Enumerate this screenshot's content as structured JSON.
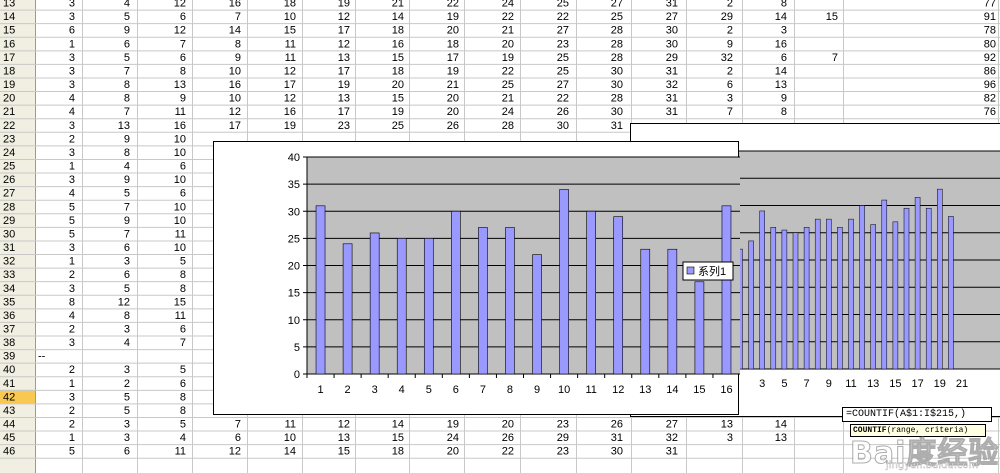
{
  "spreadsheet": {
    "rows": [
      {
        "n": "13",
        "c": [
          "3",
          "4",
          "12",
          "16",
          "18",
          "19",
          "21",
          "22",
          "24",
          "25",
          "27",
          "31",
          "2",
          "8",
          "",
          "77"
        ]
      },
      {
        "n": "14",
        "c": [
          "3",
          "5",
          "6",
          "7",
          "10",
          "12",
          "14",
          "19",
          "22",
          "22",
          "25",
          "27",
          "29",
          "14",
          "15",
          "91"
        ]
      },
      {
        "n": "15",
        "c": [
          "6",
          "9",
          "12",
          "14",
          "15",
          "17",
          "18",
          "20",
          "21",
          "27",
          "28",
          "30",
          "2",
          "3",
          "",
          "78"
        ]
      },
      {
        "n": "16",
        "c": [
          "1",
          "6",
          "7",
          "8",
          "11",
          "12",
          "16",
          "18",
          "20",
          "23",
          "28",
          "30",
          "9",
          "16",
          "",
          "80"
        ]
      },
      {
        "n": "17",
        "c": [
          "3",
          "5",
          "6",
          "9",
          "11",
          "13",
          "15",
          "17",
          "19",
          "25",
          "28",
          "29",
          "32",
          "6",
          "7",
          "92"
        ]
      },
      {
        "n": "18",
        "c": [
          "3",
          "7",
          "8",
          "10",
          "12",
          "17",
          "18",
          "19",
          "22",
          "25",
          "30",
          "31",
          "2",
          "14",
          "",
          "86"
        ]
      },
      {
        "n": "19",
        "c": [
          "3",
          "8",
          "13",
          "16",
          "17",
          "19",
          "20",
          "21",
          "25",
          "27",
          "30",
          "32",
          "6",
          "13",
          "",
          "96"
        ]
      },
      {
        "n": "20",
        "c": [
          "4",
          "8",
          "9",
          "10",
          "12",
          "13",
          "15",
          "20",
          "21",
          "22",
          "28",
          "31",
          "3",
          "9",
          "",
          "82"
        ]
      },
      {
        "n": "21",
        "c": [
          "4",
          "7",
          "11",
          "12",
          "16",
          "17",
          "19",
          "20",
          "24",
          "26",
          "30",
          "31",
          "7",
          "8",
          "",
          "76"
        ]
      },
      {
        "n": "22",
        "c": [
          "3",
          "13",
          "16",
          "17",
          "19",
          "23",
          "25",
          "26",
          "28",
          "30",
          "31",
          "",
          "",
          "",
          "",
          ""
        ]
      },
      {
        "n": "23",
        "c": [
          "2",
          "9",
          "10",
          "",
          "",
          "",
          "",
          "",
          "",
          "",
          "",
          "",
          "",
          "",
          "",
          ""
        ]
      },
      {
        "n": "24",
        "c": [
          "3",
          "8",
          "10",
          "",
          "",
          "",
          "",
          "",
          "",
          "",
          "",
          "",
          "",
          "",
          "",
          ""
        ]
      },
      {
        "n": "25",
        "c": [
          "1",
          "4",
          "6",
          "",
          "",
          "",
          "",
          "",
          "",
          "",
          "",
          "",
          "",
          "",
          "",
          ""
        ]
      },
      {
        "n": "26",
        "c": [
          "3",
          "9",
          "10",
          "",
          "",
          "",
          "",
          "",
          "",
          "",
          "",
          "",
          "",
          "",
          "",
          ""
        ]
      },
      {
        "n": "27",
        "c": [
          "4",
          "5",
          "6",
          "",
          "",
          "",
          "",
          "",
          "",
          "",
          "",
          "",
          "",
          "",
          "",
          ""
        ]
      },
      {
        "n": "28",
        "c": [
          "5",
          "7",
          "10",
          "",
          "",
          "",
          "",
          "",
          "",
          "",
          "",
          "",
          "",
          "",
          "",
          ""
        ]
      },
      {
        "n": "29",
        "c": [
          "5",
          "9",
          "10",
          "",
          "",
          "",
          "",
          "",
          "",
          "",
          "",
          "",
          "",
          "",
          "",
          ""
        ]
      },
      {
        "n": "30",
        "c": [
          "5",
          "7",
          "11",
          "",
          "",
          "",
          "",
          "",
          "",
          "",
          "",
          "",
          "",
          "",
          "",
          ""
        ]
      },
      {
        "n": "31",
        "c": [
          "3",
          "6",
          "10",
          "",
          "",
          "",
          "",
          "",
          "",
          "",
          "",
          "",
          "",
          "",
          "",
          ""
        ]
      },
      {
        "n": "32",
        "c": [
          "1",
          "3",
          "5",
          "",
          "",
          "",
          "",
          "",
          "",
          "",
          "",
          "",
          "",
          "",
          "",
          ""
        ]
      },
      {
        "n": "33",
        "c": [
          "2",
          "6",
          "8",
          "",
          "",
          "",
          "",
          "",
          "",
          "",
          "",
          "",
          "",
          "",
          "",
          ""
        ]
      },
      {
        "n": "34",
        "c": [
          "3",
          "5",
          "8",
          "",
          "",
          "",
          "",
          "",
          "",
          "",
          "",
          "",
          "",
          "",
          "",
          ""
        ]
      },
      {
        "n": "35",
        "c": [
          "8",
          "12",
          "15",
          "",
          "",
          "",
          "",
          "",
          "",
          "",
          "",
          "",
          "",
          "",
          "",
          ""
        ]
      },
      {
        "n": "36",
        "c": [
          "4",
          "8",
          "11",
          "",
          "",
          "",
          "",
          "",
          "",
          "",
          "",
          "",
          "",
          "",
          "",
          ""
        ]
      },
      {
        "n": "37",
        "c": [
          "2",
          "3",
          "6",
          "",
          "",
          "",
          "",
          "",
          "",
          "",
          "",
          "",
          "",
          "",
          "",
          ""
        ]
      },
      {
        "n": "38",
        "c": [
          "3",
          "4",
          "7",
          "",
          "",
          "",
          "",
          "",
          "",
          "",
          "",
          "",
          "",
          "",
          "",
          ""
        ]
      },
      {
        "n": "39",
        "c": [
          "",
          "",
          "",
          "",
          "",
          "",
          "",
          "",
          "",
          "",
          "",
          "",
          "",
          "",
          "",
          ""
        ],
        "a": "--"
      },
      {
        "n": "40",
        "c": [
          "2",
          "3",
          "5",
          "",
          "",
          "",
          "",
          "",
          "",
          "",
          "",
          "",
          "",
          "",
          "",
          ""
        ]
      },
      {
        "n": "41",
        "c": [
          "1",
          "2",
          "6",
          "",
          "",
          "",
          "",
          "",
          "",
          "",
          "",
          "",
          "",
          "",
          "",
          ""
        ]
      },
      {
        "n": "42",
        "c": [
          "3",
          "5",
          "8",
          "12",
          "14",
          "15",
          "19",
          "20",
          "24",
          "25",
          "30",
          "32",
          "5",
          "16",
          "",
          ""
        ]
      },
      {
        "n": "43",
        "c": [
          "2",
          "5",
          "8",
          "9",
          "12",
          "13",
          "15",
          "19",
          "23",
          "25",
          "28",
          "31",
          "10",
          "12",
          "",
          ""
        ]
      },
      {
        "n": "44",
        "c": [
          "2",
          "3",
          "5",
          "7",
          "11",
          "12",
          "14",
          "19",
          "20",
          "23",
          "26",
          "27",
          "13",
          "14",
          "",
          ""
        ]
      },
      {
        "n": "45",
        "c": [
          "1",
          "3",
          "4",
          "6",
          "10",
          "13",
          "15",
          "24",
          "26",
          "29",
          "31",
          "32",
          "3",
          "13",
          "",
          ""
        ]
      },
      {
        "n": "46",
        "c": [
          "5",
          "6",
          "11",
          "12",
          "14",
          "15",
          "18",
          "20",
          "22",
          "23",
          "30",
          "31",
          "",
          "",
          "",
          ""
        ]
      }
    ],
    "selected_row": "42"
  },
  "chart_data": [
    {
      "type": "bar",
      "categories": [
        "1",
        "2",
        "3",
        "4",
        "5",
        "6",
        "7",
        "8",
        "9",
        "10",
        "11",
        "12",
        "13",
        "14",
        "15",
        "16"
      ],
      "series": [
        {
          "name": "系列1",
          "values": [
            31,
            24,
            26,
            25,
            25,
            30,
            27,
            27,
            22,
            34,
            30,
            29,
            23,
            23,
            17,
            31
          ]
        }
      ],
      "ylim": [
        0,
        40
      ],
      "yticks": [
        "0",
        "5",
        "10",
        "15",
        "20",
        "25",
        "30",
        "35",
        "40"
      ],
      "grid": true,
      "legend": "right",
      "plot_background": "#c0c0c0",
      "bar_color": "#9999ff"
    },
    {
      "type": "bar",
      "visible_categories": [
        "3",
        "5",
        "7",
        "9",
        "11",
        "13",
        "15",
        "17",
        "19",
        "21"
      ],
      "values": [
        22,
        23.5,
        29,
        26,
        25.5,
        25,
        26,
        27.5,
        27.5,
        26,
        27.5,
        30,
        26.5,
        31,
        27,
        29.5,
        31.5,
        29.5,
        33,
        28
      ],
      "grid": true,
      "plot_background": "#c0c0c0",
      "bar_color": "#9999ff"
    }
  ],
  "formula": {
    "text": "=COUNTIF(A$1:I$215,)",
    "hint_func": "COUNTIF",
    "hint_args": "(range, criteria)"
  },
  "watermark": {
    "logo": "Bai度经验",
    "site": "jingyan.baidu.com"
  }
}
